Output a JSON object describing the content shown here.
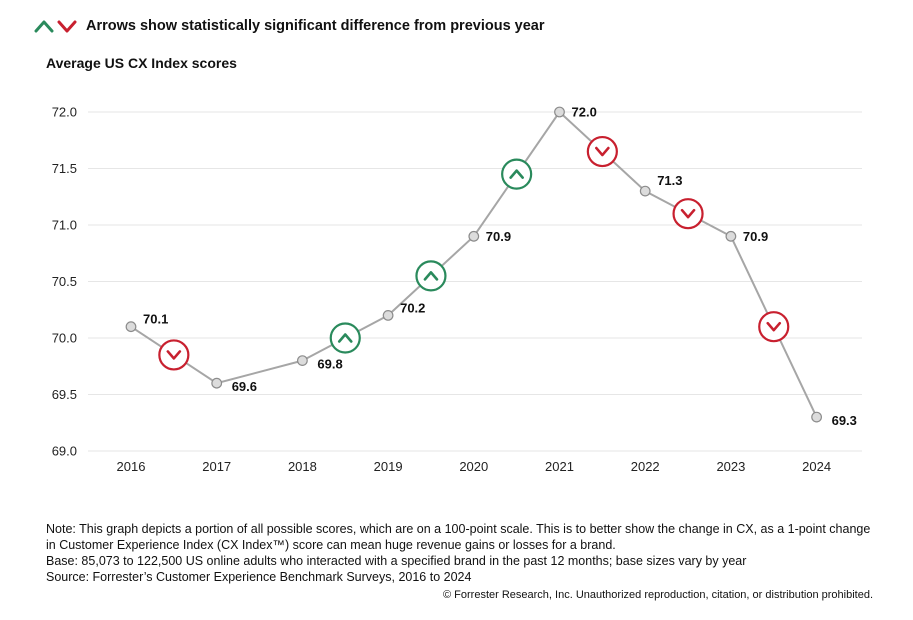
{
  "legend": {
    "text": "Arrows show statistically significant difference from previous year",
    "up_color": "#2a8a5c",
    "down_color": "#c8202f"
  },
  "chart_data": {
    "type": "line",
    "title": "Average US CX Index scores",
    "xlabel": "",
    "ylabel": "",
    "categories": [
      "2016",
      "2017",
      "2018",
      "2019",
      "2020",
      "2021",
      "2022",
      "2023",
      "2024"
    ],
    "values": [
      70.1,
      69.6,
      69.8,
      70.2,
      70.9,
      72.0,
      71.3,
      70.9,
      69.3
    ],
    "labels": [
      "70.1",
      "69.6",
      "69.8",
      "70.2",
      "70.9",
      "72.0",
      "71.3",
      "70.9",
      "69.3"
    ],
    "ylim": [
      69.0,
      72.0
    ],
    "yticks": [
      "69.0",
      "69.5",
      "70.0",
      "70.5",
      "71.0",
      "71.5",
      "72.0"
    ],
    "grid": true,
    "significance_markers": [
      {
        "between": [
          "2016",
          "2017"
        ],
        "direction": "down"
      },
      {
        "between": [
          "2018",
          "2019"
        ],
        "direction": "up"
      },
      {
        "between": [
          "2019",
          "2020"
        ],
        "direction": "up"
      },
      {
        "between": [
          "2020",
          "2021"
        ],
        "direction": "up"
      },
      {
        "between": [
          "2021",
          "2022"
        ],
        "direction": "down"
      },
      {
        "between": [
          "2022",
          "2023"
        ],
        "direction": "down"
      },
      {
        "between": [
          "2023",
          "2024"
        ],
        "direction": "down"
      }
    ],
    "line_color": "#a6a6a6",
    "point_fill": "#dcdcdc",
    "point_stroke": "#8c8c8c",
    "grid_color": "#e6e6e6"
  },
  "notes": {
    "line1": "Note: This graph depicts a portion of all possible scores, which are on a 100-point scale. This is to better show the change in CX, as a 1-point change",
    "line2": "in Customer Experience Index (CX Index™) score can mean huge revenue gains or losses for a brand.",
    "line3": "Base: 85,073 to 122,500 US online adults who interacted with a specified brand in the past 12 months; base sizes vary by year",
    "line4": "Source: Forrester’s Customer Experience Benchmark Surveys, 2016 to 2024"
  },
  "copyright": "© Forrester Research, Inc. Unauthorized reproduction, citation, or distribution prohibited."
}
